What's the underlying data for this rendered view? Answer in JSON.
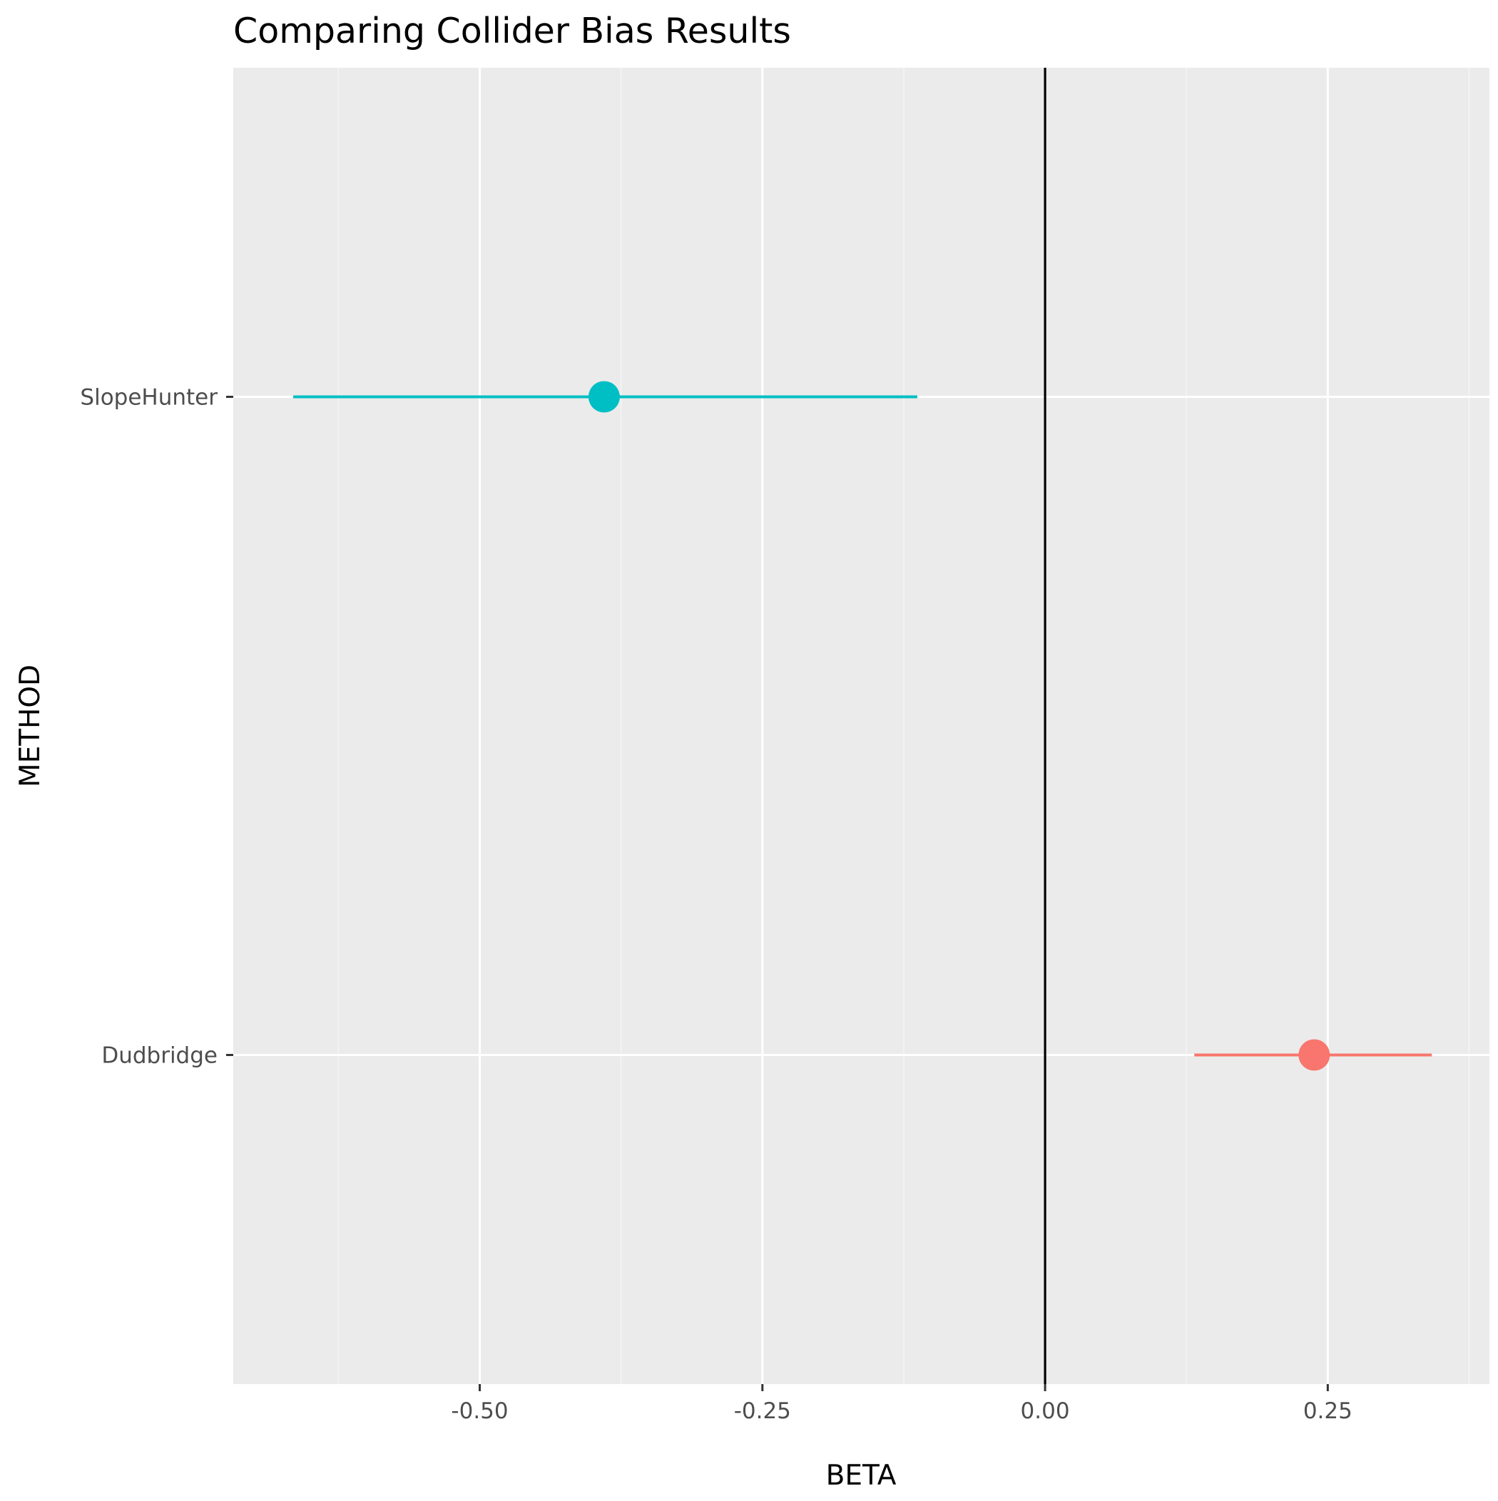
{
  "chart_data": {
    "type": "scatter",
    "title": "Comparing Collider Bias Results",
    "xlabel": "BETA",
    "ylabel": "METHOD",
    "xlim": [
      -0.718,
      0.393
    ],
    "x_ticks": [
      -0.5,
      -0.25,
      0.0,
      0.25
    ],
    "x_tick_labels": [
      "-0.50",
      "-0.25",
      "0.00",
      "0.25"
    ],
    "categories": [
      "SlopeHunter",
      "Dudbridge"
    ],
    "grid": true,
    "legend": "none",
    "reference_line": {
      "x": 0,
      "color": "#000000"
    },
    "series": [
      {
        "category": "SlopeHunter",
        "estimate": -0.39,
        "ci_low": -0.665,
        "ci_high": -0.113,
        "color": "#00BFC4"
      },
      {
        "category": "Dudbridge",
        "estimate": 0.238,
        "ci_low": 0.132,
        "ci_high": 0.342,
        "color": "#F8766D"
      }
    ],
    "colors": {
      "panel_background": "#EBEBEB",
      "grid_major": "#FFFFFF",
      "grid_minor": "#F5F5F5",
      "tick_text": "#4D4D4D",
      "tick_mark": "#333333"
    }
  }
}
